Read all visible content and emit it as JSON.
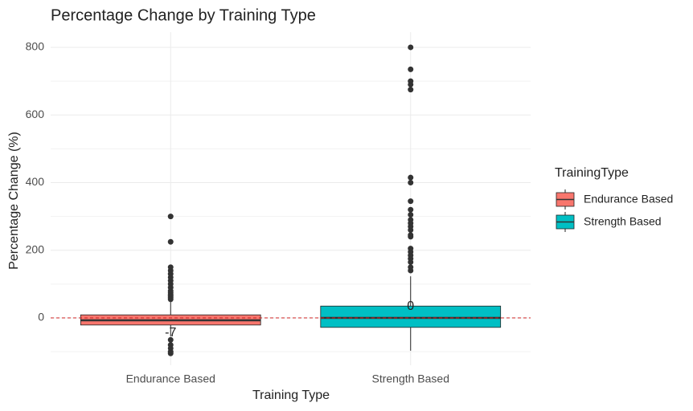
{
  "chart_data": {
    "type": "box",
    "title": "Percentage Change by Training Type",
    "x_label": "Training Type",
    "y_label": "Percentage Change (%)",
    "legend_title": "TrainingType",
    "categories": [
      "Endurance Based",
      "Strength Based"
    ],
    "series": [
      {
        "name": "Endurance Based",
        "color": "#F8766D",
        "min": -55,
        "q1": -21,
        "median": -7,
        "q3": 9,
        "max": 47,
        "outliers": [
          -65,
          -80,
          -90,
          -100,
          -105,
          55,
          60,
          65,
          70,
          75,
          80,
          90,
          100,
          110,
          120,
          130,
          140,
          150,
          225,
          300
        ]
      },
      {
        "name": "Strength Based",
        "color": "#00BFC4",
        "min": -97,
        "q1": -28,
        "median": 0,
        "q3": 35,
        "max": 123,
        "outliers": [
          140,
          150,
          165,
          175,
          185,
          195,
          205,
          240,
          245,
          260,
          270,
          280,
          290,
          305,
          320,
          345,
          400,
          415,
          675,
          690,
          700,
          735,
          800
        ]
      }
    ],
    "hline": 0,
    "hline_color": "#cc2222",
    "ylim": [
      -140,
      845
    ],
    "yticks": [
      0,
      200,
      400,
      600,
      800
    ],
    "minor_yticks": [
      -100,
      100,
      300,
      500,
      700
    ],
    "grid": true,
    "legend_position": "right"
  }
}
